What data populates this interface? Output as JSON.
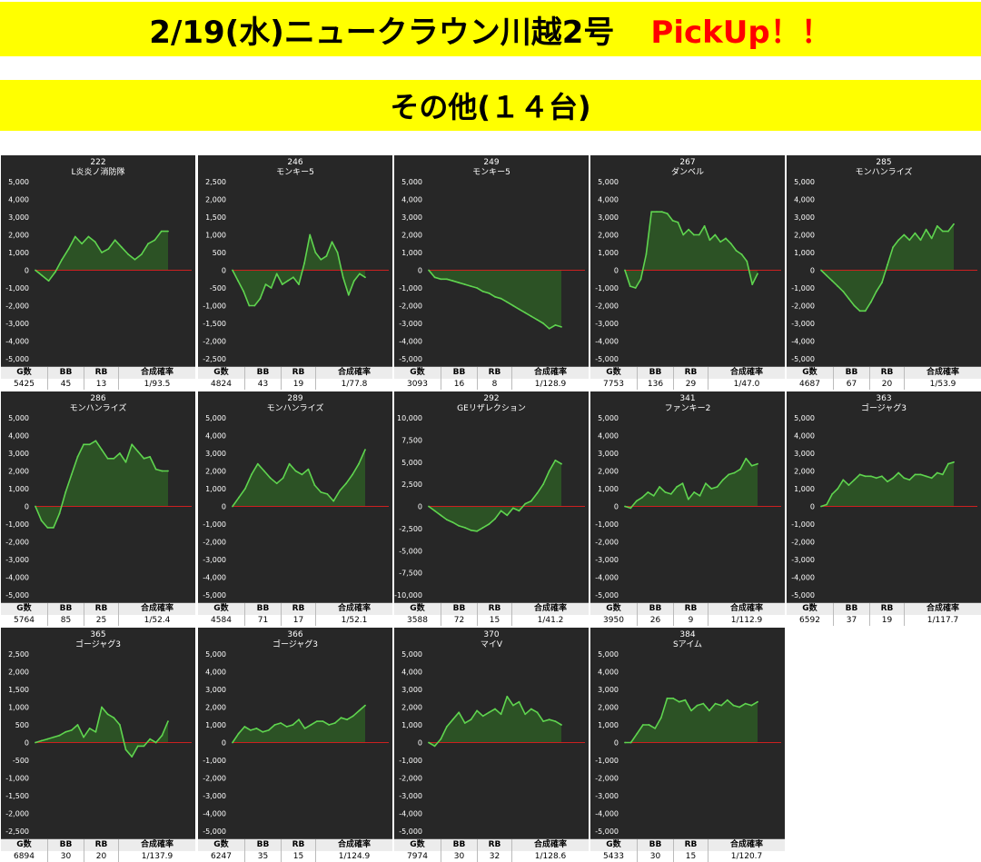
{
  "header": {
    "title": "2/19(水)ニュークラウン川越2号",
    "pickup": "PickUp！！",
    "subtitle": "その他(１４台)"
  },
  "stats_labels": {
    "games": "G数",
    "bb": "BB",
    "rb": "RB",
    "rate": "合成確率"
  },
  "colors": {
    "line": "#5fd44f",
    "fill": "#2e5a26",
    "zero_line": "#cc2020",
    "panel_bg": "#272727",
    "banner": "#ffff00",
    "pickup": "#ff0000"
  },
  "chart_data": [
    {
      "type": "area",
      "machine_no": "222",
      "name": "L炎炎ノ消防隊",
      "ylim": [
        -5000,
        5000
      ],
      "yticks": [
        "5,000",
        "4,000",
        "3,000",
        "2,000",
        "1,000",
        "0",
        "-1,000",
        "-2,000",
        "-3,000",
        "-4,000",
        "-5,000"
      ],
      "values": [
        0,
        -300,
        -600,
        -100,
        600,
        1200,
        1900,
        1500,
        1900,
        1600,
        1000,
        1200,
        1700,
        1300,
        900,
        600,
        900,
        1500,
        1700,
        2200,
        2200
      ],
      "stats": {
        "games": "5425",
        "bb": "45",
        "rb": "13",
        "rate": "1/93.5"
      }
    },
    {
      "type": "area",
      "machine_no": "246",
      "name": "モンキー5",
      "ylim": [
        -2500,
        2500
      ],
      "yticks": [
        "2,500",
        "2,000",
        "1,500",
        "1,000",
        "500",
        "0",
        "-500",
        "-1,000",
        "-1,500",
        "-2,000",
        "-2,500"
      ],
      "values": [
        0,
        -300,
        -600,
        -1000,
        -1000,
        -800,
        -400,
        -500,
        -100,
        -400,
        -300,
        -200,
        -400,
        200,
        1000,
        500,
        300,
        400,
        800,
        500,
        -200,
        -700,
        -300,
        -100,
        -200
      ],
      "stats": {
        "games": "4824",
        "bb": "43",
        "rb": "19",
        "rate": "1/77.8"
      }
    },
    {
      "type": "area",
      "machine_no": "249",
      "name": "モンキー5",
      "ylim": [
        -5000,
        5000
      ],
      "yticks": [
        "5,000",
        "4,000",
        "3,000",
        "2,000",
        "1,000",
        "0",
        "-1,000",
        "-2,000",
        "-3,000",
        "-4,000",
        "-5,000"
      ],
      "values": [
        0,
        -400,
        -500,
        -500,
        -600,
        -700,
        -800,
        -900,
        -1000,
        -1200,
        -1300,
        -1500,
        -1600,
        -1800,
        -2000,
        -2200,
        -2400,
        -2600,
        -2800,
        -3000,
        -3300,
        -3100,
        -3200
      ],
      "stats": {
        "games": "3093",
        "bb": "16",
        "rb": "8",
        "rate": "1/128.9"
      }
    },
    {
      "type": "area",
      "machine_no": "267",
      "name": "ダンベル",
      "ylim": [
        -5000,
        5000
      ],
      "yticks": [
        "5,000",
        "4,000",
        "3,000",
        "2,000",
        "1,000",
        "0",
        "-1,000",
        "-2,000",
        "-3,000",
        "-4,000",
        "-5,000"
      ],
      "values": [
        0,
        -900,
        -1000,
        -500,
        900,
        3300,
        3300,
        3300,
        3200,
        2800,
        2700,
        2000,
        2300,
        2000,
        2000,
        2500,
        1700,
        2000,
        1600,
        1800,
        1500,
        1100,
        900,
        500,
        -800,
        -200
      ],
      "stats": {
        "games": "7753",
        "bb": "136",
        "rb": "29",
        "rate": "1/47.0"
      }
    },
    {
      "type": "area",
      "machine_no": "285",
      "name": "モンハンライズ",
      "ylim": [
        -5000,
        5000
      ],
      "yticks": [
        "5,000",
        "4,000",
        "3,000",
        "2,000",
        "1,000",
        "0",
        "-1,000",
        "-2,000",
        "-3,000",
        "-4,000",
        "-5,000"
      ],
      "values": [
        0,
        -300,
        -600,
        -900,
        -1200,
        -1600,
        -2000,
        -2300,
        -2300,
        -1800,
        -1200,
        -700,
        300,
        1300,
        1700,
        2000,
        1700,
        2100,
        1700,
        2300,
        1800,
        2500,
        2200,
        2200,
        2600
      ],
      "stats": {
        "games": "4687",
        "bb": "67",
        "rb": "20",
        "rate": "1/53.9"
      }
    },
    {
      "type": "area",
      "machine_no": "286",
      "name": "モンハンライズ",
      "ylim": [
        -5000,
        5000
      ],
      "yticks": [
        "5,000",
        "4,000",
        "3,000",
        "2,000",
        "1,000",
        "0",
        "-1,000",
        "-2,000",
        "-3,000",
        "-4,000",
        "-5,000"
      ],
      "values": [
        0,
        -800,
        -1200,
        -1200,
        -400,
        800,
        1800,
        2800,
        3500,
        3500,
        3700,
        3200,
        2700,
        2700,
        3000,
        2500,
        3500,
        3100,
        2700,
        2800,
        2100,
        2000,
        2000
      ],
      "stats": {
        "games": "5764",
        "bb": "85",
        "rb": "25",
        "rate": "1/52.4"
      }
    },
    {
      "type": "area",
      "machine_no": "289",
      "name": "モンハンライズ",
      "ylim": [
        -5000,
        5000
      ],
      "yticks": [
        "5,000",
        "4,000",
        "3,000",
        "2,000",
        "1,000",
        "0",
        "-1,000",
        "-2,000",
        "-3,000",
        "-4,000",
        "-5,000"
      ],
      "values": [
        0,
        500,
        1000,
        1800,
        2400,
        2000,
        1600,
        1300,
        1600,
        2400,
        2000,
        1800,
        2100,
        1200,
        800,
        700,
        300,
        900,
        1300,
        1800,
        2400,
        3200
      ],
      "stats": {
        "games": "4584",
        "bb": "71",
        "rb": "17",
        "rate": "1/52.1"
      }
    },
    {
      "type": "area",
      "machine_no": "292",
      "name": "GEリザレクション",
      "ylim": [
        -10000,
        10000
      ],
      "yticks": [
        "10,000",
        "7,500",
        "5,000",
        "2,500",
        "0",
        "-2,500",
        "-5,000",
        "-7,500",
        "-10,000"
      ],
      "values": [
        0,
        -500,
        -1000,
        -1500,
        -1800,
        -2200,
        -2400,
        -2700,
        -2800,
        -2400,
        -2000,
        -1400,
        -500,
        -1000,
        -200,
        -500,
        300,
        600,
        1500,
        2500,
        4000,
        5200,
        4800
      ],
      "stats": {
        "games": "3588",
        "bb": "72",
        "rb": "15",
        "rate": "1/41.2"
      }
    },
    {
      "type": "area",
      "machine_no": "341",
      "name": "ファンキー2",
      "ylim": [
        -5000,
        5000
      ],
      "yticks": [
        "5,000",
        "4,000",
        "3,000",
        "2,000",
        "1,000",
        "0",
        "-1,000",
        "-2,000",
        "-3,000",
        "-4,000",
        "-5,000"
      ],
      "values": [
        0,
        -100,
        300,
        500,
        800,
        600,
        1100,
        800,
        700,
        1100,
        1300,
        400,
        800,
        600,
        1300,
        1000,
        1100,
        1500,
        1800,
        1900,
        2100,
        2700,
        2300,
        2400
      ],
      "stats": {
        "games": "3950",
        "bb": "26",
        "rb": "9",
        "rate": "1/112.9"
      }
    },
    {
      "type": "area",
      "machine_no": "363",
      "name": "ゴージャグ3",
      "ylim": [
        -5000,
        5000
      ],
      "yticks": [
        "5,000",
        "4,000",
        "3,000",
        "2,000",
        "1,000",
        "0",
        "-1,000",
        "-2,000",
        "-3,000",
        "-4,000",
        "-5,000"
      ],
      "values": [
        0,
        100,
        700,
        1000,
        1500,
        1200,
        1500,
        1800,
        1700,
        1700,
        1600,
        1700,
        1400,
        1600,
        1900,
        1600,
        1500,
        1800,
        1800,
        1700,
        1600,
        1900,
        1800,
        2400,
        2500
      ],
      "stats": {
        "games": "6592",
        "bb": "37",
        "rb": "19",
        "rate": "1/117.7"
      }
    },
    {
      "type": "area",
      "machine_no": "365",
      "name": "ゴージャグ3",
      "ylim": [
        -2500,
        2500
      ],
      "yticks": [
        "2,500",
        "2,000",
        "1,500",
        "1,000",
        "500",
        "0",
        "-500",
        "-1,000",
        "-1,500",
        "-2,000",
        "-2,500"
      ],
      "values": [
        0,
        50,
        100,
        150,
        200,
        300,
        350,
        500,
        150,
        400,
        300,
        1000,
        800,
        700,
        500,
        -200,
        -400,
        -100,
        -100,
        100,
        0,
        200,
        600
      ],
      "stats": {
        "games": "6894",
        "bb": "30",
        "rb": "20",
        "rate": "1/137.9"
      }
    },
    {
      "type": "area",
      "machine_no": "366",
      "name": "ゴージャグ3",
      "ylim": [
        -5000,
        5000
      ],
      "yticks": [
        "5,000",
        "4,000",
        "3,000",
        "2,000",
        "1,000",
        "0",
        "-1,000",
        "-2,000",
        "-3,000",
        "-4,000",
        "-5,000"
      ],
      "values": [
        0,
        500,
        900,
        700,
        800,
        600,
        700,
        1000,
        1100,
        900,
        1000,
        1300,
        800,
        1000,
        1200,
        1200,
        1000,
        1100,
        1400,
        1300,
        1500,
        1800,
        2100
      ],
      "stats": {
        "games": "6247",
        "bb": "35",
        "rb": "15",
        "rate": "1/124.9"
      }
    },
    {
      "type": "area",
      "machine_no": "370",
      "name": "マイV",
      "ylim": [
        -5000,
        5000
      ],
      "yticks": [
        "5,000",
        "4,000",
        "3,000",
        "2,000",
        "1,000",
        "0",
        "-1,000",
        "-2,000",
        "-3,000",
        "-4,000",
        "-5,000"
      ],
      "values": [
        0,
        -200,
        200,
        900,
        1300,
        1700,
        1100,
        1300,
        1800,
        1500,
        1700,
        1900,
        1600,
        2600,
        2100,
        2300,
        1600,
        1900,
        1700,
        1200,
        1300,
        1200,
        1000
      ],
      "stats": {
        "games": "7974",
        "bb": "30",
        "rb": "32",
        "rate": "1/128.6"
      }
    },
    {
      "type": "area",
      "machine_no": "384",
      "name": "Sアイム",
      "ylim": [
        -5000,
        5000
      ],
      "yticks": [
        "5,000",
        "4,000",
        "3,000",
        "2,000",
        "1,000",
        "0",
        "-1,000",
        "-2,000",
        "-3,000",
        "-4,000",
        "-5,000"
      ],
      "values": [
        0,
        0,
        500,
        1000,
        1000,
        800,
        1400,
        2500,
        2500,
        2300,
        2400,
        1800,
        2100,
        2200,
        1800,
        2200,
        2100,
        2400,
        2100,
        2000,
        2200,
        2100,
        2300
      ],
      "stats": {
        "games": "5433",
        "bb": "30",
        "rb": "15",
        "rate": "1/120.7"
      }
    }
  ]
}
